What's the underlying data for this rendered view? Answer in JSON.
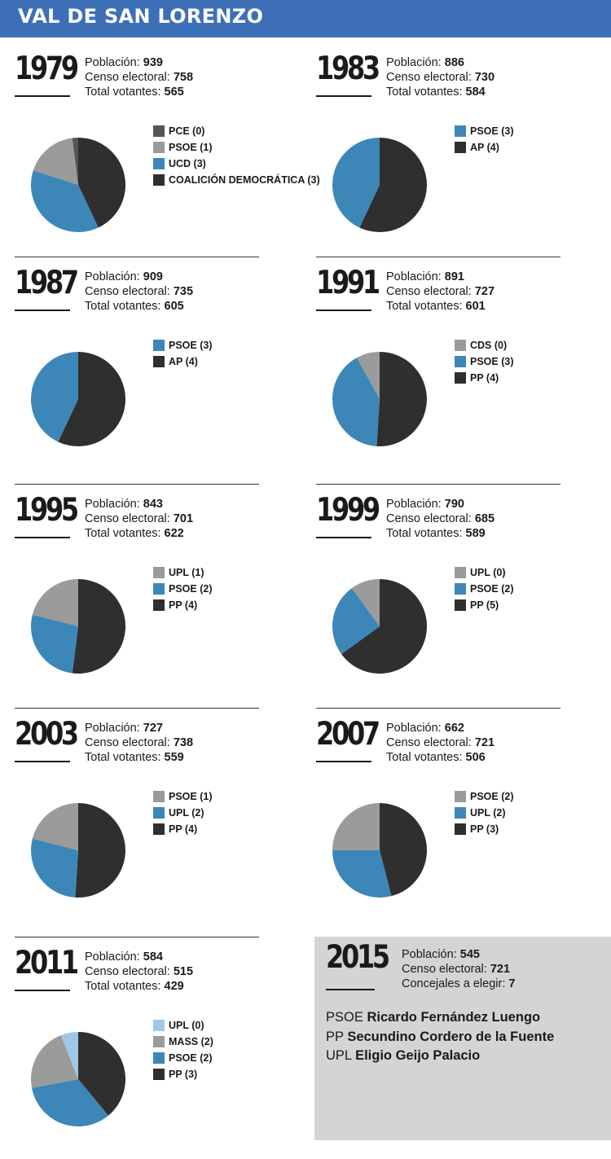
{
  "title": "VAL DE SAN LORENZO",
  "colors": {
    "header": "#3d6fb6",
    "pp_ap_cd": "#2f2f2f",
    "pce": "#555555",
    "grey_party": "#9b9b9b",
    "blue_party": "#3c87b8",
    "light_blue": "#9fc7e8",
    "box_bg": "#d4d4d4"
  },
  "labels": {
    "poblacion": "Población:",
    "censo": "Censo electoral:",
    "votantes": "Total votantes:",
    "concejales": "Concejales a elegir:"
  },
  "chart_data": [
    {
      "type": "pie",
      "title": "1979",
      "stats": {
        "poblacion": "939",
        "censo": "758",
        "votantes": "565"
      },
      "series": [
        {
          "name": "COALICIÓN DEMOCRÁTICA (3)",
          "value": 43,
          "color": "#2f2f2f"
        },
        {
          "name": "UCD (3)",
          "value": 37,
          "color": "#3c87b8"
        },
        {
          "name": "PSOE (1)",
          "value": 18,
          "color": "#9b9b9b"
        },
        {
          "name": "PCE (0)",
          "value": 2,
          "color": "#555555"
        }
      ],
      "legend_order": [
        "PCE (0)",
        "PSOE (1)",
        "UCD (3)",
        "COALICIÓN DEMOCRÁTICA (3)"
      ]
    },
    {
      "type": "pie",
      "title": "1983",
      "stats": {
        "poblacion": "886",
        "censo": "730",
        "votantes": "584"
      },
      "series": [
        {
          "name": "AP (4)",
          "value": 57,
          "color": "#2f2f2f"
        },
        {
          "name": "PSOE (3)",
          "value": 43,
          "color": "#3c87b8"
        }
      ],
      "legend_order": [
        "PSOE (3)",
        "AP (4)"
      ]
    },
    {
      "type": "pie",
      "title": "1987",
      "stats": {
        "poblacion": "909",
        "censo": "735",
        "votantes": "605"
      },
      "series": [
        {
          "name": "AP (4)",
          "value": 57,
          "color": "#2f2f2f"
        },
        {
          "name": "PSOE (3)",
          "value": 43,
          "color": "#3c87b8"
        }
      ],
      "legend_order": [
        "PSOE (3)",
        "AP (4)"
      ]
    },
    {
      "type": "pie",
      "title": "1991",
      "stats": {
        "poblacion": "891",
        "censo": "727",
        "votantes": "601"
      },
      "series": [
        {
          "name": "PP (4)",
          "value": 51,
          "color": "#2f2f2f"
        },
        {
          "name": "PSOE (3)",
          "value": 41,
          "color": "#3c87b8"
        },
        {
          "name": "CDS (0)",
          "value": 8,
          "color": "#9b9b9b"
        }
      ],
      "legend_order": [
        "CDS (0)",
        "PSOE (3)",
        "PP (4)"
      ]
    },
    {
      "type": "pie",
      "title": "1995",
      "stats": {
        "poblacion": "843",
        "censo": "701",
        "votantes": "622"
      },
      "series": [
        {
          "name": "PP (4)",
          "value": 52,
          "color": "#2f2f2f"
        },
        {
          "name": "PSOE (2)",
          "value": 27,
          "color": "#3c87b8"
        },
        {
          "name": "UPL (1)",
          "value": 21,
          "color": "#9b9b9b"
        }
      ],
      "legend_order": [
        "UPL (1)",
        "PSOE (2)",
        "PP (4)"
      ]
    },
    {
      "type": "pie",
      "title": "1999",
      "stats": {
        "poblacion": "790",
        "censo": "685",
        "votantes": "589"
      },
      "series": [
        {
          "name": "PP (5)",
          "value": 65,
          "color": "#2f2f2f"
        },
        {
          "name": "PSOE (2)",
          "value": 25,
          "color": "#3c87b8"
        },
        {
          "name": "UPL (0)",
          "value": 10,
          "color": "#9b9b9b"
        }
      ],
      "legend_order": [
        "UPL (0)",
        "PSOE (2)",
        "PP (5)"
      ]
    },
    {
      "type": "pie",
      "title": "2003",
      "stats": {
        "poblacion": "727",
        "censo": "738",
        "votantes": "559"
      },
      "series": [
        {
          "name": "PP (4)",
          "value": 51,
          "color": "#2f2f2f"
        },
        {
          "name": "UPL (2)",
          "value": 28,
          "color": "#3c87b8"
        },
        {
          "name": "PSOE (1)",
          "value": 21,
          "color": "#9b9b9b"
        }
      ],
      "legend_order": [
        "PSOE (1)",
        "UPL (2)",
        "PP (4)"
      ]
    },
    {
      "type": "pie",
      "title": "2007",
      "stats": {
        "poblacion": "662",
        "censo": "721",
        "votantes": "506"
      },
      "series": [
        {
          "name": "PP (3)",
          "value": 46,
          "color": "#2f2f2f"
        },
        {
          "name": "UPL (2)",
          "value": 29,
          "color": "#3c87b8"
        },
        {
          "name": "PSOE (2)",
          "value": 25,
          "color": "#9b9b9b"
        }
      ],
      "legend_order": [
        "PSOE (2)",
        "UPL (2)",
        "PP (3)"
      ]
    },
    {
      "type": "pie",
      "title": "2011",
      "stats": {
        "poblacion": "584",
        "censo": "515",
        "votantes": "429"
      },
      "series": [
        {
          "name": "PP (3)",
          "value": 39,
          "color": "#2f2f2f"
        },
        {
          "name": "PSOE (2)",
          "value": 33,
          "color": "#3c87b8"
        },
        {
          "name": "MASS (2)",
          "value": 22,
          "color": "#9b9b9b"
        },
        {
          "name": "UPL (0)",
          "value": 6,
          "color": "#9fc7e8"
        }
      ],
      "legend_order": [
        "UPL (0)",
        "MASS (2)",
        "PSOE (2)",
        "PP (3)"
      ]
    }
  ],
  "box2015": {
    "year": "2015",
    "poblacion": "545",
    "censo": "721",
    "concejales": "7",
    "candidates": [
      {
        "party": "PSOE",
        "name": "Ricardo Fernández Luengo"
      },
      {
        "party": "PP",
        "name": "Secundino Cordero de la Fuente"
      },
      {
        "party": "UPL",
        "name": "Eligio Geijo Palacio"
      }
    ]
  }
}
